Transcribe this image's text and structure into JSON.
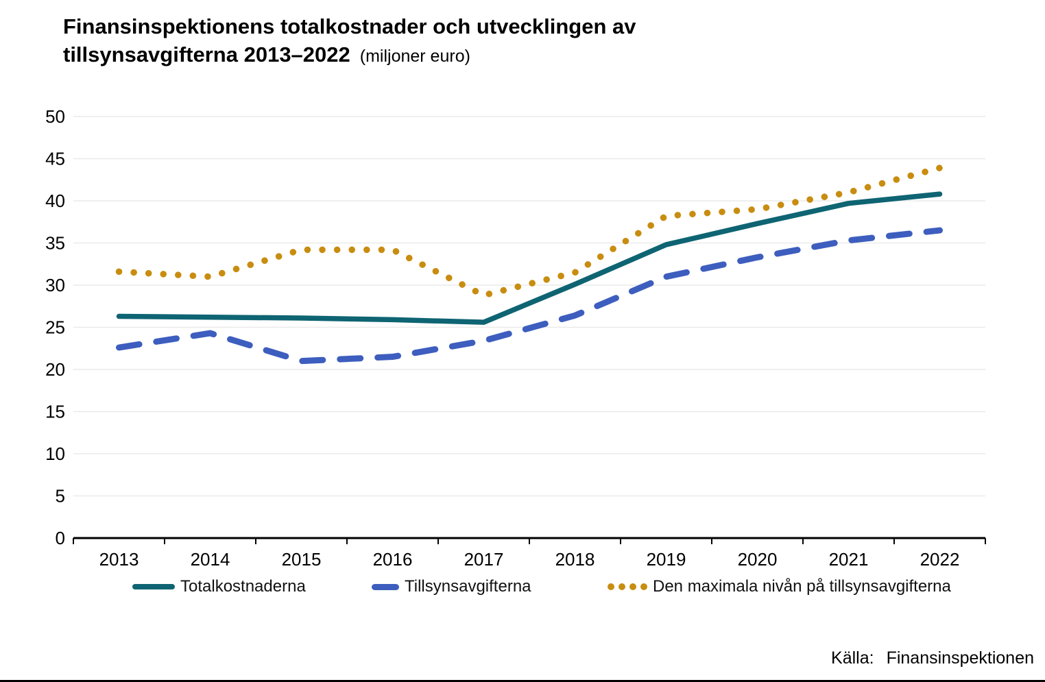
{
  "title": {
    "line1": "Finansinspektionens totalkostnader och utvecklingen av",
    "line2": "tillsynsavgifterna 2013–2022",
    "units": "(miljoner euro)"
  },
  "source": {
    "label": "Källa:",
    "value": "Finansinspektionen"
  },
  "colors": {
    "total": "#0E6472",
    "fees": "#3D5EBE",
    "max": "#C88D10",
    "grid": "#EAEAEA",
    "axis": "#000000"
  },
  "chart_data": {
    "type": "line",
    "categories": [
      "2013",
      "2014",
      "2015",
      "2016",
      "2017",
      "2018",
      "2019",
      "2020",
      "2021",
      "2022"
    ],
    "series": [
      {
        "name": "Totalkostnaderna",
        "style": "solid",
        "color": "#0E6472",
        "values": [
          26.3,
          26.2,
          26.1,
          25.9,
          25.6,
          30.1,
          34.8,
          37.3,
          39.7,
          40.8
        ]
      },
      {
        "name": "Tillsynsavgifterna",
        "style": "dashed",
        "color": "#3D5EBE",
        "values": [
          22.6,
          24.3,
          21.0,
          21.5,
          23.4,
          26.4,
          31.0,
          33.3,
          35.3,
          36.5
        ]
      },
      {
        "name": "Den maximala nivån på tillsynsavgifterna",
        "style": "dotted",
        "color": "#C88D10",
        "values": [
          31.6,
          31.0,
          34.2,
          34.2,
          28.8,
          31.5,
          38.2,
          39.0,
          41.0,
          43.9
        ]
      }
    ],
    "ylabel": "",
    "xlabel": "",
    "ylim": [
      0,
      50
    ],
    "ytick_step": 5,
    "grid": true,
    "legend_position": "bottom"
  }
}
